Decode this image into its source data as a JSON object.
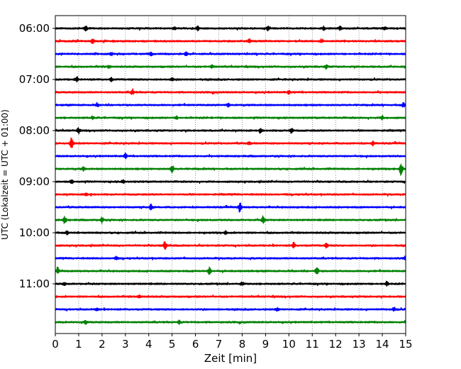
{
  "chart_data": {
    "type": "line",
    "title": "",
    "xlabel": "Zeit  [min]",
    "ylabel": "UTC (Lokalzeit = UTC + 01:00)",
    "xlim": [
      0,
      15
    ],
    "x_ticks": [
      "0",
      "1",
      "2",
      "3",
      "4",
      "5",
      "6",
      "7",
      "8",
      "9",
      "10",
      "11",
      "12",
      "13",
      "14",
      "15"
    ],
    "y_ticks": [
      "06:00",
      "07:00",
      "08:00",
      "09:00",
      "10:00",
      "11:00"
    ],
    "minutes_per_trace": 15,
    "traces_per_hour": 4,
    "start_time": "06:00",
    "grid": "vertical dotted lines at each minute",
    "color_cycle": [
      "#000000",
      "#ff0000",
      "#0000ff",
      "#008000"
    ],
    "series": [
      {
        "start": "06:00",
        "events": [
          [
            1.3,
            0.9
          ],
          [
            5.1,
            0.7
          ],
          [
            6.1,
            0.7
          ],
          [
            9.1,
            0.7
          ],
          [
            11.5,
            0.7
          ],
          [
            12.2,
            0.8
          ],
          [
            14.1,
            0.7
          ]
        ]
      },
      {
        "start": "06:15",
        "events": [
          [
            1.6,
            0.8
          ],
          [
            8.3,
            0.7
          ],
          [
            11.4,
            0.6
          ]
        ]
      },
      {
        "start": "06:30",
        "events": [
          [
            2.4,
            0.5
          ],
          [
            4.1,
            0.6
          ],
          [
            5.6,
            0.6
          ]
        ]
      },
      {
        "start": "06:45",
        "events": [
          [
            2.3,
            0.5
          ],
          [
            6.7,
            0.6
          ],
          [
            11.6,
            0.7
          ]
        ]
      },
      {
        "start": "07:00",
        "events": [
          [
            0.9,
            0.8
          ],
          [
            2.4,
            0.6
          ],
          [
            5.0,
            0.5
          ]
        ]
      },
      {
        "start": "07:15",
        "events": [
          [
            3.3,
            1.0
          ],
          [
            10.0,
            0.6
          ]
        ]
      },
      {
        "start": "07:30",
        "events": [
          [
            1.8,
            0.5
          ],
          [
            7.4,
            0.6
          ],
          [
            14.9,
            0.8
          ]
        ]
      },
      {
        "start": "07:45",
        "events": [
          [
            1.6,
            0.5
          ],
          [
            5.2,
            0.5
          ],
          [
            14.0,
            0.6
          ]
        ]
      },
      {
        "start": "08:00",
        "events": [
          [
            1.0,
            0.8
          ],
          [
            8.8,
            0.7
          ],
          [
            10.1,
            1.0
          ]
        ]
      },
      {
        "start": "08:15",
        "events": [
          [
            0.7,
            2.2
          ],
          [
            8.3,
            0.6
          ],
          [
            13.6,
            0.8
          ]
        ]
      },
      {
        "start": "08:30",
        "events": [
          [
            3.0,
            0.9
          ]
        ]
      },
      {
        "start": "08:45",
        "events": [
          [
            1.2,
            0.6
          ],
          [
            5.0,
            1.5
          ],
          [
            14.8,
            2.4
          ]
        ]
      },
      {
        "start": "09:00",
        "events": [
          [
            0.7,
            0.6
          ],
          [
            2.9,
            0.6
          ]
        ]
      },
      {
        "start": "09:15",
        "events": [
          [
            1.3,
            0.5
          ]
        ]
      },
      {
        "start": "09:30",
        "events": [
          [
            4.1,
            1.0
          ],
          [
            7.9,
            1.7
          ]
        ]
      },
      {
        "start": "09:45",
        "events": [
          [
            0.4,
            1.2
          ],
          [
            2.0,
            1.1
          ],
          [
            8.9,
            1.3
          ]
        ]
      },
      {
        "start": "10:00",
        "events": [
          [
            0.5,
            0.6
          ],
          [
            7.3,
            0.6
          ]
        ]
      },
      {
        "start": "10:15",
        "events": [
          [
            4.7,
            1.8
          ],
          [
            10.2,
            1.0
          ],
          [
            11.6,
            0.7
          ]
        ]
      },
      {
        "start": "10:30",
        "events": [
          [
            2.6,
            0.5
          ],
          [
            15.0,
            0.9
          ]
        ]
      },
      {
        "start": "10:45",
        "events": [
          [
            0.1,
            0.9
          ],
          [
            6.6,
            1.3
          ],
          [
            11.2,
            1.6
          ]
        ]
      },
      {
        "start": "11:00",
        "events": [
          [
            0.4,
            0.6
          ],
          [
            8.0,
            0.6
          ],
          [
            14.2,
            0.7
          ]
        ]
      },
      {
        "start": "11:15",
        "events": [
          [
            3.6,
            0.5
          ]
        ]
      },
      {
        "start": "11:30",
        "events": [
          [
            1.8,
            0.5
          ],
          [
            9.5,
            0.5
          ],
          [
            14.5,
            0.8
          ]
        ]
      },
      {
        "start": "11:45",
        "events": [
          [
            1.3,
            0.6
          ],
          [
            5.3,
            0.6
          ]
        ]
      }
    ]
  }
}
